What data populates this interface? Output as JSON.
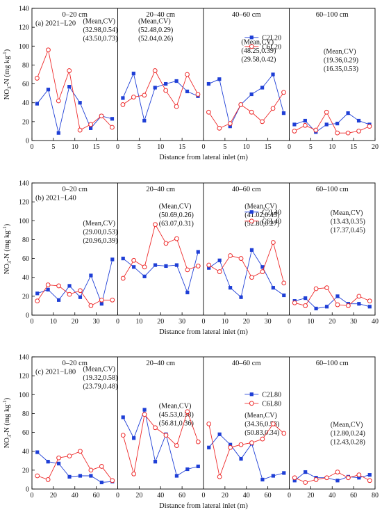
{
  "chart_data": [
    {
      "type": "line",
      "panel_label": "(a) 2021−L20",
      "ylabel_prefix": "NO",
      "ylabel_sub1": "3",
      "ylabel_mid": "-N (mg kg",
      "ylabel_sup": "-1",
      "ylabel_end": ")",
      "xlabel": "Distance from lateral inlet (m)",
      "ylim": [
        0,
        140
      ],
      "yticks": [
        "0",
        "20",
        "40",
        "60",
        "80",
        "100",
        "120",
        "140"
      ],
      "xlim": [
        0,
        80
      ],
      "xticks": [
        "0",
        "5",
        "10",
        "15",
        "0",
        "5",
        "10",
        "15",
        "0",
        "5",
        "10",
        "15",
        "0",
        "5",
        "10",
        "15",
        "20"
      ],
      "layers": [
        {
          "name": "0–20 cm",
          "annotations": [
            "(Mean,CV)",
            "(32.98,0.54)",
            "(43.50,0.73)"
          ]
        },
        {
          "name": "20–40 cm",
          "annotations": [
            "(Mean,CV)",
            "(52.48,0.29)",
            "(52.04,0.26)"
          ]
        },
        {
          "name": "40–60 cm",
          "annotations": [
            "(Mean,CV)",
            "(48.25,0.39)",
            "(29.58,0.42)"
          ]
        },
        {
          "name": "60–100 cm",
          "annotations": [
            "(Mean,CV)",
            "(19.36,0.29)",
            "(16.35,0.53)"
          ]
        }
      ],
      "legend": [
        "C2L20",
        "C6L20"
      ],
      "series": [
        {
          "name": "C2L20",
          "color": "#1f3fd6",
          "marker": "square",
          "x": [
            1.2,
            3.8,
            6.2,
            8.7,
            11.2,
            13.7,
            16.2,
            18.7,
            21.2,
            23.7,
            26.2,
            28.7,
            31.2,
            33.7,
            36.2,
            38.7,
            41.2,
            43.7,
            46.2,
            48.7,
            51.2,
            53.7,
            56.2,
            58.7,
            61.2,
            63.7,
            66.2,
            68.7,
            71.2,
            73.7,
            76.2,
            78.7
          ],
          "y": [
            39,
            54,
            8,
            57,
            40,
            13,
            26,
            23,
            45,
            71,
            21,
            56,
            60,
            63,
            52,
            47,
            60,
            65,
            15,
            38,
            49,
            56,
            70,
            29,
            17,
            21,
            9,
            17,
            18,
            29,
            21,
            17
          ]
        },
        {
          "name": "C6L20",
          "color": "#ee2a2a",
          "marker": "circle",
          "x": [
            1.2,
            3.8,
            6.2,
            8.7,
            11.2,
            13.7,
            16.2,
            18.7,
            21.2,
            23.7,
            26.2,
            28.7,
            31.2,
            33.7,
            36.2,
            38.7,
            41.2,
            43.7,
            46.2,
            48.7,
            51.2,
            53.7,
            56.2,
            58.7,
            61.2,
            63.7,
            66.2,
            68.7,
            71.2,
            73.7,
            76.2,
            78.7
          ],
          "y": [
            66,
            96,
            42,
            74,
            11,
            17,
            26,
            14,
            38,
            46,
            48,
            74,
            53,
            36,
            70,
            49,
            30,
            13,
            18,
            38,
            30,
            20,
            34,
            51,
            10,
            16,
            11,
            30,
            8,
            8,
            10,
            15
          ]
        }
      ]
    },
    {
      "type": "line",
      "panel_label": "(b) 2021−L40",
      "ylabel_prefix": "NO",
      "ylabel_sub1": "3",
      "ylabel_mid": "-N (mg kg",
      "ylabel_sup": "-1",
      "ylabel_end": ")",
      "xlabel": "Distance from lateral inlet (m)",
      "ylim": [
        0,
        140
      ],
      "yticks": [
        "0",
        "20",
        "40",
        "60",
        "80",
        "100",
        "120",
        "140"
      ],
      "xlim": [
        0,
        160
      ],
      "xticks": [
        "0",
        "10",
        "20",
        "30",
        "0",
        "10",
        "20",
        "30",
        "0",
        "10",
        "20",
        "30",
        "0",
        "10",
        "20",
        "30",
        "40"
      ],
      "layers": [
        {
          "name": "0–20 cm",
          "annotations": [
            "(Mean,CV)",
            "(29.00,0.53)",
            "(20.96,0.39)"
          ]
        },
        {
          "name": "20–40 cm",
          "annotations": [
            "(Mean,CV)",
            "(50.69,0.26)",
            "(63.07,0.31)"
          ]
        },
        {
          "name": "40–60 cm",
          "annotations": [
            "(Mean,CV)",
            "(41.02,0.45)",
            "(52.80,0.27)"
          ]
        },
        {
          "name": "60–100 cm",
          "annotations": [
            "(Mean,CV)",
            "(13.43,0.35)",
            "(17.37,0.45)"
          ]
        }
      ],
      "legend": [
        "C2L40",
        "C6L40"
      ],
      "series": [
        {
          "name": "C2L40",
          "color": "#1f3fd6",
          "marker": "square",
          "x": [
            2.5,
            7.5,
            12.5,
            17.5,
            22.5,
            27.5,
            32.5,
            37.5,
            42.5,
            47.5,
            52.5,
            57.5,
            62.5,
            67.5,
            72.5,
            77.5,
            82.5,
            87.5,
            92.5,
            97.5,
            102.5,
            107.5,
            112.5,
            117.5,
            122.5,
            127.5,
            132.5,
            137.5,
            142.5,
            147.5,
            152.5,
            157.5
          ],
          "y": [
            23,
            27,
            16,
            31,
            19,
            42,
            12,
            59,
            60,
            51,
            41,
            53,
            52,
            53,
            24,
            67,
            50,
            58,
            29,
            19,
            69,
            51,
            29,
            21,
            15,
            18,
            7,
            9,
            20,
            12,
            12,
            9
          ]
        },
        {
          "name": "C6L40",
          "color": "#ee2a2a",
          "marker": "circle",
          "x": [
            2.5,
            7.5,
            12.5,
            17.5,
            22.5,
            27.5,
            32.5,
            37.5,
            42.5,
            47.5,
            52.5,
            57.5,
            62.5,
            67.5,
            72.5,
            77.5,
            82.5,
            87.5,
            92.5,
            97.5,
            102.5,
            107.5,
            112.5,
            117.5,
            122.5,
            127.5,
            132.5,
            137.5,
            142.5,
            147.5,
            152.5,
            157.5
          ],
          "y": [
            15,
            32,
            31,
            22,
            26,
            10,
            16,
            16,
            39,
            58,
            51,
            96,
            76,
            81,
            48,
            52,
            53,
            46,
            63,
            60,
            40,
            46,
            77,
            34,
            13,
            10,
            28,
            29,
            11,
            10,
            20,
            15
          ]
        }
      ]
    },
    {
      "type": "line",
      "panel_label": "(c) 2021−L80",
      "ylabel_prefix": "NO",
      "ylabel_sub1": "3",
      "ylabel_mid": "-N (mg kg",
      "ylabel_sup": "-1",
      "ylabel_end": ")",
      "xlabel": "Distance from lateral inlet (m)",
      "ylim": [
        0,
        140
      ],
      "yticks": [
        "0",
        "20",
        "40",
        "60",
        "80",
        "100",
        "120",
        "140"
      ],
      "xlim": [
        0,
        320
      ],
      "xticks": [
        "0",
        "20",
        "40",
        "60",
        "0",
        "20",
        "40",
        "60",
        "0",
        "20",
        "40",
        "60",
        "0",
        "20",
        "40",
        "60",
        "80"
      ],
      "layers": [
        {
          "name": "0–20 cm",
          "annotations": [
            "(Mean,CV)",
            "(19.32,0.58)",
            "(23.79,0.48)"
          ]
        },
        {
          "name": "20–40 cm",
          "annotations": [
            "(Mean,CV)",
            "(45.53,0.58)",
            "(56.81,0.36)"
          ]
        },
        {
          "name": "40–60 cm",
          "annotations": [
            "(Mean,CV)",
            "(34.36,0.53)",
            "(50.83,0.34)"
          ]
        },
        {
          "name": "60–100 cm",
          "annotations": [
            "(Mean,CV)",
            "(12.80,0.24)",
            "(12.43,0.28)"
          ]
        }
      ],
      "legend": [
        "C2L80",
        "C6L80"
      ],
      "series": [
        {
          "name": "C2L80",
          "color": "#1f3fd6",
          "marker": "square",
          "x": [
            5,
            15,
            25,
            35,
            45,
            55,
            65,
            75,
            85,
            95,
            105,
            115,
            125,
            135,
            145,
            155,
            165,
            175,
            185,
            195,
            205,
            215,
            225,
            235,
            245,
            255,
            265,
            275,
            285,
            295,
            305,
            315
          ],
          "y": [
            39,
            29,
            27,
            13,
            14,
            14,
            7,
            8,
            76,
            54,
            84,
            29,
            58,
            14,
            21,
            24,
            44,
            58,
            47,
            32,
            48,
            10,
            14,
            17,
            9,
            18,
            12,
            12,
            9,
            13,
            12,
            15
          ]
        },
        {
          "name": "C6L80",
          "color": "#ee2a2a",
          "marker": "circle",
          "x": [
            5,
            15,
            25,
            35,
            45,
            55,
            65,
            75,
            85,
            95,
            105,
            115,
            125,
            135,
            145,
            155,
            165,
            175,
            185,
            195,
            205,
            215,
            225,
            235,
            245,
            255,
            265,
            275,
            285,
            295,
            305,
            315
          ],
          "y": [
            14,
            10,
            33,
            35,
            40,
            20,
            24,
            9,
            57,
            16,
            79,
            65,
            57,
            46,
            82,
            50,
            69,
            13,
            44,
            47,
            49,
            53,
            69,
            59,
            12,
            7,
            10,
            12,
            18,
            12,
            15,
            9
          ]
        }
      ]
    }
  ]
}
